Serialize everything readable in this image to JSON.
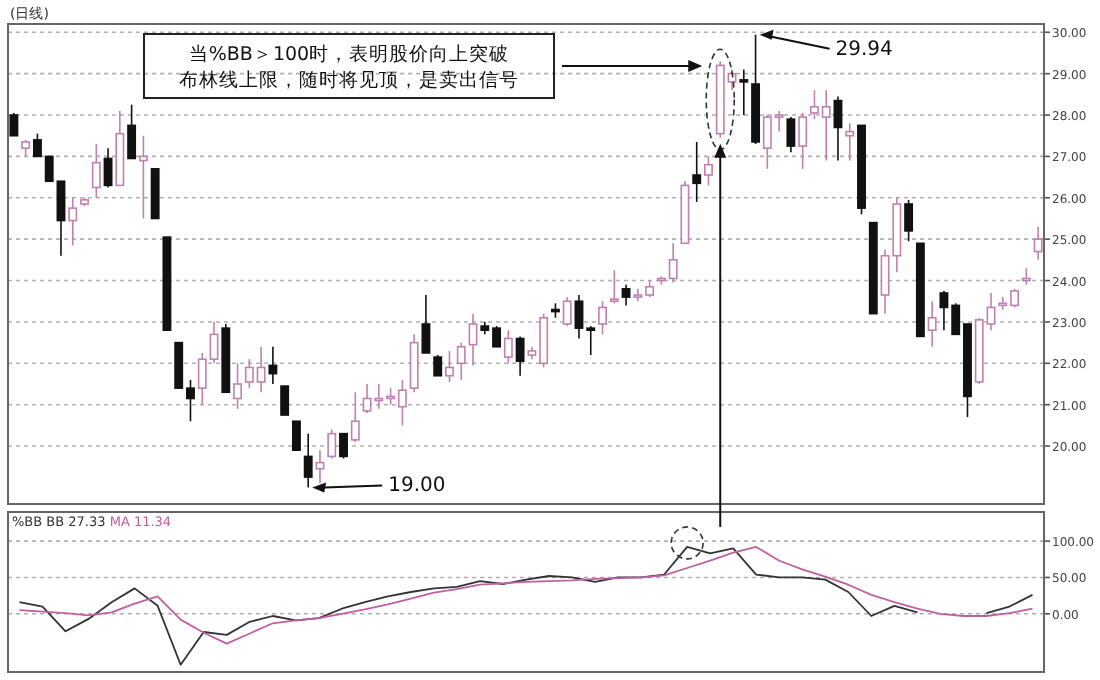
{
  "chart_data": [
    {
      "type": "candlestick",
      "title": "(日线)",
      "categories": [
        null,
        null,
        null,
        null,
        null,
        null,
        null,
        null,
        null,
        null,
        null,
        null,
        null,
        null,
        null,
        null,
        null,
        null,
        null,
        null,
        null,
        null,
        null,
        null,
        null,
        null,
        null,
        null,
        null,
        null,
        null,
        null,
        null,
        null,
        null,
        null,
        null,
        null,
        null,
        null,
        null,
        null,
        null,
        null,
        null,
        null,
        null,
        null,
        null,
        null,
        null,
        null,
        null,
        null,
        null,
        null,
        null,
        null,
        null,
        null,
        null,
        null,
        null,
        null,
        null,
        null,
        null,
        null,
        null,
        null,
        null,
        null,
        null,
        null,
        null,
        null,
        null,
        null,
        null,
        null,
        null,
        null,
        null,
        null,
        null,
        null,
        null,
        null
      ],
      "ohlc": [
        [
          28.0,
          28.05,
          27.5,
          27.5
        ],
        [
          27.2,
          27.4,
          27.0,
          27.35
        ],
        [
          27.4,
          27.55,
          27.0,
          27.0
        ],
        [
          27.0,
          27.0,
          26.4,
          26.4
        ],
        [
          26.4,
          26.4,
          24.6,
          25.45
        ],
        [
          25.45,
          26.0,
          24.85,
          25.75
        ],
        [
          25.85,
          26.0,
          25.8,
          25.95
        ],
        [
          26.25,
          27.3,
          26.0,
          26.85
        ],
        [
          26.95,
          27.2,
          26.25,
          26.3
        ],
        [
          26.3,
          28.1,
          26.3,
          27.55
        ],
        [
          27.75,
          28.25,
          26.95,
          26.95
        ],
        [
          26.9,
          27.5,
          25.5,
          27.0
        ],
        [
          26.7,
          26.7,
          25.5,
          25.5
        ],
        [
          25.05,
          25.05,
          22.8,
          22.8
        ],
        [
          22.5,
          22.5,
          21.4,
          21.4
        ],
        [
          21.4,
          21.6,
          20.6,
          21.15
        ],
        [
          21.4,
          22.25,
          21.0,
          22.1
        ],
        [
          22.1,
          23.0,
          22.0,
          22.7
        ],
        [
          22.85,
          22.95,
          21.3,
          21.3
        ],
        [
          21.15,
          22.0,
          20.9,
          21.5
        ],
        [
          21.55,
          22.1,
          21.4,
          21.9
        ],
        [
          21.55,
          22.4,
          21.3,
          21.9
        ],
        [
          21.95,
          22.4,
          21.5,
          21.75
        ],
        [
          21.45,
          21.45,
          20.75,
          20.75
        ],
        [
          20.6,
          20.6,
          19.9,
          19.9
        ],
        [
          19.75,
          20.3,
          19.0,
          19.25
        ],
        [
          19.45,
          19.9,
          19.1,
          19.6
        ],
        [
          19.75,
          20.4,
          19.7,
          20.3
        ],
        [
          20.3,
          20.3,
          19.7,
          19.75
        ],
        [
          20.15,
          21.3,
          20.1,
          20.6
        ],
        [
          20.85,
          21.5,
          20.8,
          21.15
        ],
        [
          21.1,
          21.5,
          20.9,
          21.15
        ],
        [
          21.15,
          21.4,
          21.0,
          21.2
        ],
        [
          20.95,
          21.6,
          20.5,
          21.35
        ],
        [
          21.4,
          22.7,
          21.3,
          22.5
        ],
        [
          22.95,
          23.65,
          22.25,
          22.25
        ],
        [
          22.15,
          22.2,
          21.7,
          21.7
        ],
        [
          21.7,
          22.3,
          21.55,
          21.9
        ],
        [
          22.0,
          22.5,
          21.6,
          22.4
        ],
        [
          22.45,
          23.2,
          21.95,
          22.95
        ],
        [
          22.9,
          23.0,
          22.7,
          22.8
        ],
        [
          22.85,
          22.9,
          22.4,
          22.4
        ],
        [
          22.15,
          22.8,
          22.0,
          22.6
        ],
        [
          22.6,
          22.65,
          21.7,
          22.05
        ],
        [
          22.2,
          22.4,
          22.1,
          22.3
        ],
        [
          22.0,
          23.2,
          21.9,
          23.1
        ],
        [
          23.3,
          23.45,
          23.1,
          23.25
        ],
        [
          22.95,
          23.6,
          22.9,
          23.5
        ],
        [
          23.5,
          23.65,
          22.6,
          22.85
        ],
        [
          22.85,
          22.9,
          22.2,
          22.8
        ],
        [
          22.95,
          23.5,
          22.7,
          23.35
        ],
        [
          23.5,
          24.25,
          23.45,
          23.55
        ],
        [
          23.8,
          23.9,
          23.4,
          23.6
        ],
        [
          23.6,
          23.8,
          23.5,
          23.65
        ],
        [
          23.65,
          24.0,
          23.6,
          23.85
        ],
        [
          24.0,
          24.1,
          23.9,
          24.05
        ],
        [
          24.05,
          24.9,
          23.95,
          24.5
        ],
        [
          24.9,
          26.4,
          24.9,
          26.3
        ],
        [
          26.55,
          27.35,
          25.9,
          26.35
        ],
        [
          26.55,
          27.0,
          26.3,
          26.8
        ],
        [
          27.55,
          29.3,
          27.45,
          29.2
        ],
        [
          28.8,
          29.1,
          28.6,
          29.0
        ],
        [
          28.85,
          29.1,
          28.0,
          28.8
        ],
        [
          28.75,
          29.94,
          27.3,
          27.35
        ],
        [
          27.2,
          28.0,
          26.7,
          27.95
        ],
        [
          27.95,
          28.1,
          27.6,
          28.0
        ],
        [
          27.9,
          27.95,
          27.1,
          27.25
        ],
        [
          27.25,
          28.05,
          26.7,
          27.95
        ],
        [
          28.05,
          28.6,
          27.9,
          28.2
        ],
        [
          27.95,
          28.6,
          26.9,
          28.2
        ],
        [
          28.35,
          28.45,
          26.9,
          27.7
        ],
        [
          27.5,
          27.8,
          26.9,
          27.6
        ],
        [
          27.75,
          27.75,
          25.6,
          25.75
        ],
        [
          25.4,
          25.4,
          23.2,
          23.2
        ],
        [
          23.65,
          24.75,
          23.2,
          24.6
        ],
        [
          24.6,
          26.0,
          24.2,
          25.85
        ],
        [
          25.85,
          25.95,
          24.95,
          25.2
        ],
        [
          24.9,
          24.9,
          22.65,
          22.65
        ],
        [
          22.8,
          23.5,
          22.4,
          23.1
        ],
        [
          23.7,
          23.75,
          22.8,
          23.35
        ],
        [
          23.4,
          23.45,
          22.7,
          22.7
        ],
        [
          22.95,
          22.95,
          20.7,
          21.2
        ],
        [
          21.55,
          23.1,
          21.5,
          23.05
        ],
        [
          22.95,
          23.7,
          22.8,
          23.35
        ],
        [
          23.4,
          23.6,
          23.3,
          23.45
        ],
        [
          23.4,
          23.8,
          23.35,
          23.75
        ],
        [
          24.0,
          24.3,
          23.9,
          24.05
        ],
        [
          24.7,
          25.3,
          24.5,
          25.0
        ]
      ],
      "ylim": [
        18.6,
        30.2
      ],
      "yticks": [
        {
          "value": 20,
          "label": "20.00"
        },
        {
          "value": 21,
          "label": "21.00"
        },
        {
          "value": 22,
          "label": "22.00"
        },
        {
          "value": 23,
          "label": "23.00"
        },
        {
          "value": 24,
          "label": "24.00"
        },
        {
          "value": 25,
          "label": "25.00"
        },
        {
          "value": 26,
          "label": "26.00"
        },
        {
          "value": 27,
          "label": "27.00"
        },
        {
          "value": 28,
          "label": "28.00"
        },
        {
          "value": 29,
          "label": "29.00"
        },
        {
          "value": 30,
          "label": "30.00"
        }
      ],
      "grid": "y",
      "annotations": [
        "当%BB＞100时，表明股价向上突破布林线上限，随时将见顶，是卖出信号",
        "29.94",
        "19.00"
      ]
    },
    {
      "type": "line",
      "title": "%BB",
      "categories": [
        null,
        null,
        null,
        null,
        null,
        null,
        null,
        null,
        null,
        null,
        null,
        null,
        null,
        null,
        null,
        null,
        null,
        null,
        null,
        null,
        null,
        null,
        null,
        null,
        null,
        null,
        null,
        null,
        null,
        null,
        null,
        null,
        null,
        null,
        null,
        null,
        null,
        null,
        null,
        null,
        null,
        null,
        null,
        null,
        null
      ],
      "series": [
        {
          "name": "BB 27.33",
          "color": "#333333",
          "values": [
            16,
            10,
            -24,
            -7,
            16,
            35,
            11,
            -70,
            -25,
            -29,
            -11,
            -3,
            -9,
            -6,
            7,
            16,
            24,
            30,
            35,
            37,
            45,
            41,
            47,
            52,
            50,
            44,
            50,
            50,
            54,
            92,
            83,
            90,
            54,
            50,
            50,
            47,
            30,
            -3,
            11,
            2,
            null,
            null,
            1,
            10,
            26
          ]
        },
        {
          "name": "MA 11.34",
          "color": "#c060a0",
          "values": [
            5,
            3,
            1,
            -2,
            2,
            14,
            24,
            -8,
            -26,
            -41,
            -27,
            -13,
            -9,
            -6,
            0,
            6,
            13,
            21,
            29,
            34,
            40,
            42,
            44,
            45,
            46,
            48,
            49,
            50,
            53,
            63,
            73,
            84,
            92,
            73,
            61,
            51,
            40,
            26,
            16,
            7,
            0,
            -3,
            -3,
            1,
            7
          ]
        }
      ],
      "ylim": [
        -80,
        140
      ],
      "yticks": [
        {
          "value": 100,
          "label": "100.00"
        },
        {
          "value": 50,
          "label": "50.00"
        },
        {
          "value": 0,
          "label": "0.00"
        }
      ],
      "grid": "y",
      "legend": "top left",
      "line_style": "solid",
      "marker": "none"
    }
  ]
}
